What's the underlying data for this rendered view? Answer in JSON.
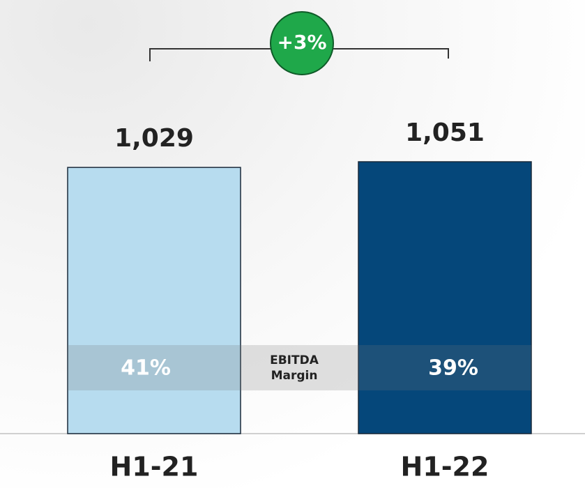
{
  "chart_data": {
    "type": "bar",
    "categories": [
      "H1-21",
      "H1-22"
    ],
    "values": [
      1029,
      1051
    ],
    "value_labels": [
      "1,029",
      "1,051"
    ],
    "colors": [
      "#b7dcef",
      "#05477a"
    ],
    "growth": {
      "value": 3,
      "label": "+3%"
    },
    "margin": {
      "name": "EBITDA Margin",
      "values": [
        41,
        39
      ],
      "value_labels": [
        "41%",
        "39%"
      ]
    }
  }
}
